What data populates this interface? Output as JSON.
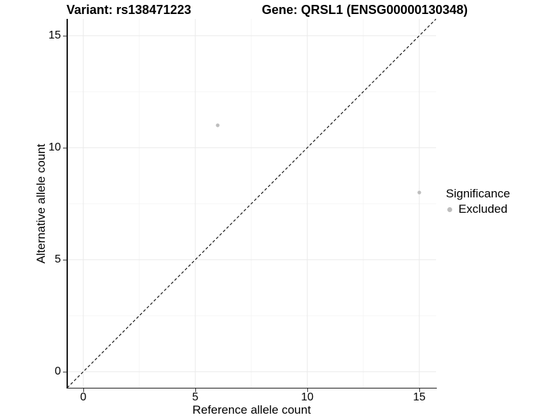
{
  "titles": {
    "left": "Variant: rs138471223",
    "right": "Gene: QRSL1 (ENSG00000130348)"
  },
  "legend": {
    "title": "Significance",
    "items": [
      {
        "label": "Excluded",
        "color": "#bebebe"
      }
    ]
  },
  "chart_data": {
    "type": "scatter",
    "xlabel": "Reference allele count",
    "ylabel": "Alternative allele count",
    "xlim": [
      -0.75,
      15.75
    ],
    "ylim": [
      -0.75,
      15.75
    ],
    "x_ticks": [
      0,
      5,
      10,
      15
    ],
    "y_ticks": [
      0,
      5,
      10,
      15
    ],
    "x_minor_ticks": [
      2.5,
      7.5,
      12.5
    ],
    "y_minor_ticks": [
      2.5,
      7.5,
      12.5
    ],
    "grid": "major+minor",
    "legend_position": "right",
    "series": [
      {
        "name": "Excluded",
        "color": "#bebebe",
        "points": [
          {
            "x": 6,
            "y": 11
          },
          {
            "x": 15,
            "y": 8
          }
        ]
      }
    ],
    "reference_line": {
      "type": "identity",
      "slope": 1,
      "intercept": 0,
      "style": "dashed",
      "color": "#000000"
    }
  },
  "colors": {
    "grid_major": "#e8e8e8",
    "grid_minor": "#f4f4f4",
    "axis": "#1a1a1a",
    "point": "#bebebe"
  }
}
